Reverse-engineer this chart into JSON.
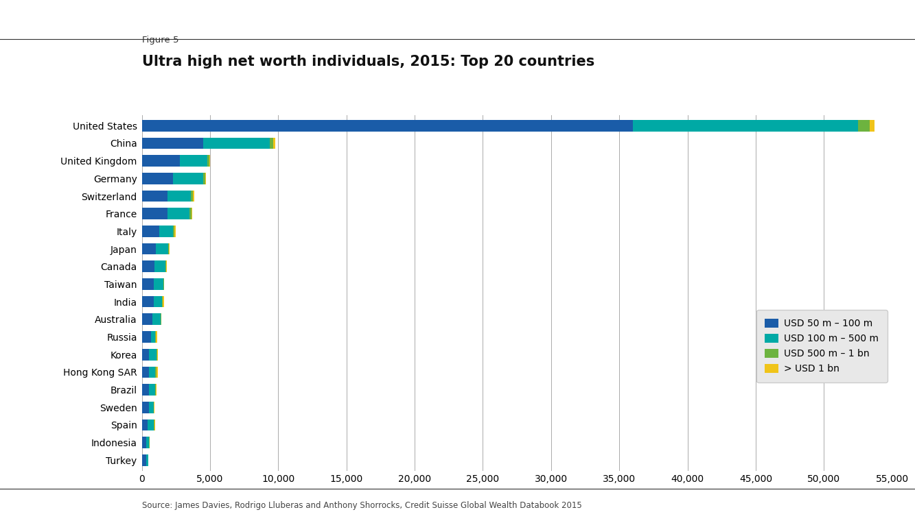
{
  "figure_label": "Figure 5",
  "title": "Ultra high net worth individuals, 2015: Top 20 countries",
  "source": "Source: James Davies, Rodrigo Lluberas and Anthony Shorrocks, Credit Suisse Global Wealth Databook 2015",
  "countries": [
    "United States",
    "China",
    "United Kingdom",
    "Germany",
    "Switzerland",
    "France",
    "Italy",
    "Japan",
    "Canada",
    "Taiwan",
    "India",
    "Australia",
    "Russia",
    "Korea",
    "Hong Kong SAR",
    "Brazil",
    "Sweden",
    "Spain",
    "Indonesia",
    "Turkey"
  ],
  "seg1_50_100m": [
    36000,
    4500,
    2800,
    2300,
    1900,
    1900,
    1300,
    1050,
    950,
    850,
    850,
    750,
    650,
    530,
    530,
    530,
    520,
    420,
    320,
    310
  ],
  "seg2_100_500m": [
    16500,
    4900,
    2000,
    2200,
    1700,
    1600,
    980,
    870,
    780,
    720,
    620,
    620,
    320,
    540,
    470,
    430,
    330,
    440,
    220,
    140
  ],
  "seg3_500m_1bn": [
    850,
    230,
    160,
    170,
    150,
    120,
    120,
    80,
    70,
    65,
    65,
    55,
    45,
    50,
    65,
    45,
    35,
    50,
    20,
    15
  ],
  "seg4_over1bn": [
    380,
    130,
    50,
    40,
    90,
    85,
    90,
    25,
    15,
    15,
    90,
    15,
    90,
    70,
    90,
    70,
    15,
    70,
    8,
    8
  ],
  "colors": [
    "#1a5ca8",
    "#00a9a5",
    "#6db33f",
    "#f0c419"
  ],
  "legend_labels": [
    "USD 50 m – 100 m",
    "USD 100 m – 500 m",
    "USD 500 m – 1 bn",
    "> USD 1 bn"
  ],
  "xlim": [
    0,
    55000
  ],
  "xticks": [
    0,
    5000,
    10000,
    15000,
    20000,
    25000,
    30000,
    35000,
    40000,
    45000,
    50000,
    55000
  ],
  "background_color": "#ffffff",
  "title_fontsize": 15,
  "label_fontsize": 10,
  "tick_fontsize": 10
}
